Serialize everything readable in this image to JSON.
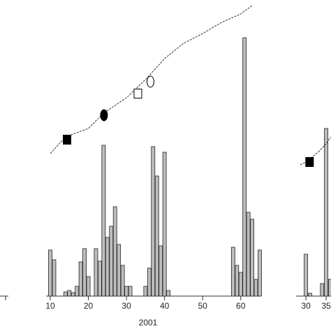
{
  "chart_data": [
    {
      "type": "bar",
      "xlabel": "2001",
      "xlim": [
        10,
        65
      ],
      "ylim": [
        0,
        424
      ],
      "xticks": [
        10,
        20,
        30,
        40,
        50,
        60
      ],
      "x": [
        10,
        11,
        14,
        15,
        16,
        17,
        18,
        19,
        20,
        22,
        23,
        24,
        25,
        26,
        27,
        28,
        29,
        30,
        31,
        35,
        36,
        37,
        38,
        39,
        40,
        41,
        58,
        59,
        60,
        61,
        62,
        63,
        64,
        65
      ],
      "values": [
        66,
        52,
        6,
        8,
        5,
        14,
        49,
        68,
        28,
        68,
        50,
        216,
        84,
        100,
        128,
        74,
        44,
        14,
        14,
        14,
        40,
        214,
        172,
        72,
        206,
        8,
        70,
        44,
        34,
        370,
        120,
        110,
        24,
        66
      ],
      "color": "#bdbdbd",
      "line": {
        "x": [
          10,
          14,
          20,
          24,
          30,
          35,
          40,
          45,
          50,
          55,
          60,
          63
        ],
        "values": [
          204,
          228,
          240,
          262,
          284,
          310,
          340,
          362,
          376,
          392,
          404,
          416
        ],
        "color": "#333333"
      },
      "markers": [
        {
          "x": 14.4,
          "y": 224,
          "shape": "square",
          "filled": true
        },
        {
          "x": 24.1,
          "y": 259,
          "shape": "circle",
          "filled": true
        },
        {
          "x": 33,
          "y": 290,
          "shape": "square",
          "filled": false
        },
        {
          "x": 36.3,
          "y": 307,
          "shape": "circle",
          "filled": false
        }
      ]
    },
    {
      "type": "bar",
      "xlim": [
        28.6,
        36.2
      ],
      "ylim": [
        0,
        424
      ],
      "xticks": [
        30,
        35
      ],
      "x": [
        30,
        31,
        34,
        35,
        36
      ],
      "values": [
        60,
        4,
        18,
        240,
        24
      ],
      "color": "#bdbdbd",
      "line": {
        "x": [
          28.6,
          30,
          33,
          35,
          36.2
        ],
        "values": [
          188,
          192,
          206,
          218,
          228
        ],
        "color": "#333333"
      },
      "markers": [
        {
          "x": 30.9,
          "y": 192,
          "shape": "square",
          "filled": true
        }
      ]
    }
  ]
}
